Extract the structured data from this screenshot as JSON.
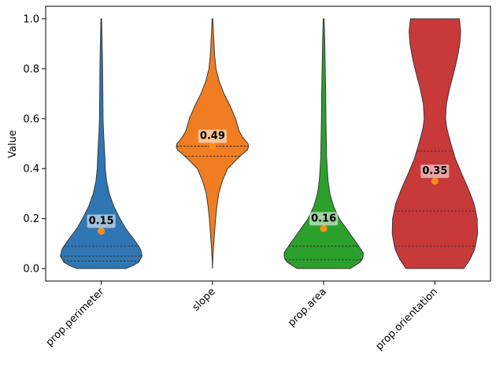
{
  "chart_data": {
    "type": "violin",
    "ylabel": "Value",
    "ylim": [
      -0.05,
      1.05
    ],
    "yticks": [
      0.0,
      0.2,
      0.4,
      0.6,
      0.8,
      1.0
    ],
    "ytick_labels": [
      "0.0",
      "0.2",
      "0.4",
      "0.6",
      "0.8",
      "1.0"
    ],
    "categories": [
      "prop.perimeter",
      "slope",
      "prop.area",
      "prop.orientation"
    ],
    "colors": [
      "#2f77b4",
      "#f07d21",
      "#2ca02c",
      "#c8393a"
    ],
    "series": [
      {
        "category": "prop.perimeter",
        "min": 0.0,
        "max": 1.0,
        "mean": 0.15,
        "mean_label": "0.15",
        "quartiles": [
          0.03,
          0.05,
          0.09
        ],
        "density_profile": [
          [
            0.0,
            0.55
          ],
          [
            0.02,
            0.82
          ],
          [
            0.05,
            0.92
          ],
          [
            0.08,
            0.88
          ],
          [
            0.12,
            0.72
          ],
          [
            0.16,
            0.55
          ],
          [
            0.2,
            0.42
          ],
          [
            0.25,
            0.28
          ],
          [
            0.3,
            0.18
          ],
          [
            0.35,
            0.12
          ],
          [
            0.4,
            0.09
          ],
          [
            0.45,
            0.08
          ],
          [
            0.5,
            0.065
          ],
          [
            0.55,
            0.05
          ],
          [
            0.6,
            0.04
          ],
          [
            0.7,
            0.035
          ],
          [
            0.8,
            0.03
          ],
          [
            0.9,
            0.02
          ],
          [
            1.0,
            0.008
          ]
        ]
      },
      {
        "category": "slope",
        "min": 0.0,
        "max": 1.0,
        "mean": 0.49,
        "mean_label": "0.49",
        "quartiles": [
          0.45,
          0.49,
          0.49
        ],
        "density_profile": [
          [
            0.0,
            0.0
          ],
          [
            0.05,
            0.01
          ],
          [
            0.1,
            0.03
          ],
          [
            0.15,
            0.05
          ],
          [
            0.2,
            0.07
          ],
          [
            0.25,
            0.1
          ],
          [
            0.3,
            0.14
          ],
          [
            0.35,
            0.22
          ],
          [
            0.4,
            0.34
          ],
          [
            0.45,
            0.62
          ],
          [
            0.48,
            0.82
          ],
          [
            0.5,
            0.8
          ],
          [
            0.52,
            0.7
          ],
          [
            0.55,
            0.6
          ],
          [
            0.6,
            0.52
          ],
          [
            0.65,
            0.4
          ],
          [
            0.7,
            0.26
          ],
          [
            0.75,
            0.15
          ],
          [
            0.8,
            0.08
          ],
          [
            0.85,
            0.05
          ],
          [
            0.9,
            0.035
          ],
          [
            0.95,
            0.02
          ],
          [
            1.0,
            0.008
          ]
        ]
      },
      {
        "category": "prop.area",
        "min": 0.0,
        "max": 1.0,
        "mean": 0.16,
        "mean_label": "0.16",
        "quartiles": [
          0.035,
          0.09,
          0.09
        ],
        "density_profile": [
          [
            0.0,
            0.6
          ],
          [
            0.03,
            0.86
          ],
          [
            0.06,
            0.9
          ],
          [
            0.1,
            0.75
          ],
          [
            0.15,
            0.55
          ],
          [
            0.2,
            0.35
          ],
          [
            0.25,
            0.22
          ],
          [
            0.3,
            0.14
          ],
          [
            0.35,
            0.1
          ],
          [
            0.4,
            0.08
          ],
          [
            0.45,
            0.065
          ],
          [
            0.5,
            0.06
          ],
          [
            0.55,
            0.055
          ],
          [
            0.6,
            0.05
          ],
          [
            0.7,
            0.045
          ],
          [
            0.8,
            0.035
          ],
          [
            0.9,
            0.025
          ],
          [
            1.0,
            0.01
          ]
        ]
      },
      {
        "category": "prop.orientation",
        "min": 0.0,
        "max": 1.0,
        "mean": 0.35,
        "mean_label": "0.35",
        "quartiles": [
          0.09,
          0.23,
          0.47
        ],
        "density_profile": [
          [
            0.0,
            0.65
          ],
          [
            0.04,
            0.8
          ],
          [
            0.08,
            0.9
          ],
          [
            0.14,
            0.96
          ],
          [
            0.2,
            0.95
          ],
          [
            0.26,
            0.88
          ],
          [
            0.32,
            0.75
          ],
          [
            0.38,
            0.6
          ],
          [
            0.44,
            0.46
          ],
          [
            0.5,
            0.36
          ],
          [
            0.56,
            0.27
          ],
          [
            0.6,
            0.24
          ],
          [
            0.66,
            0.26
          ],
          [
            0.72,
            0.33
          ],
          [
            0.78,
            0.42
          ],
          [
            0.84,
            0.5
          ],
          [
            0.9,
            0.56
          ],
          [
            0.95,
            0.58
          ],
          [
            1.0,
            0.55
          ]
        ]
      }
    ]
  }
}
